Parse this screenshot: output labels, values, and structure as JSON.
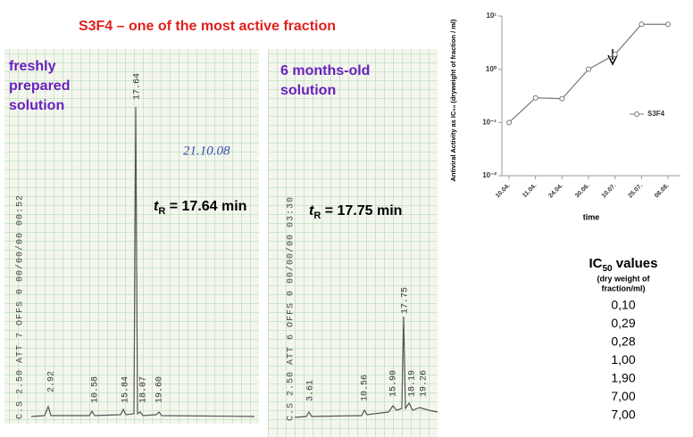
{
  "title": "S3F4 – one of the most active fraction",
  "chromatograms": [
    {
      "caption": [
        "freshly",
        "prepared",
        "solution"
      ],
      "retention": {
        "symbol": "t",
        "subscript": "R",
        "text": " = 17.64 min"
      },
      "note": "21.10.08",
      "strip": "C.S  2.50 ATT  7  OFFS  0  00/00/00  00:52",
      "peaks": [
        "2.92",
        "10.58",
        "15.84",
        "18.07",
        "19.60",
        "17.64"
      ]
    },
    {
      "caption": [
        "6 months-old",
        "solution"
      ],
      "retention": {
        "symbol": "t",
        "subscript": "R",
        "text": " = 17.75 min"
      },
      "strip": "C.S  2.50 ATT  6  OFFS  0  00/00/00  03:30",
      "peaks": [
        "3.61",
        "10.56",
        "15.90",
        "17.75",
        "18.19",
        "19.26"
      ]
    }
  ],
  "chart_data": {
    "type": "line",
    "ylabel": "Antiviral Activity as IC₅₀ (dryweight of fraction / ml)",
    "xlabel": "time",
    "categories": [
      "10.04.",
      "11.04.",
      "24.04.",
      "30.06.",
      "10.07.",
      "25.07.",
      "08.08."
    ],
    "series": [
      {
        "name": "S3F4",
        "color": "#777777",
        "values": [
          0.1,
          0.29,
          0.28,
          1.0,
          1.9,
          7.0,
          7.0
        ]
      }
    ],
    "log_y": true,
    "ylim": [
      0.01,
      10
    ],
    "yticks": [
      {
        "value": 0.01,
        "label": "10⁻²"
      },
      {
        "value": 0.1,
        "label": "10⁻¹"
      },
      {
        "value": 1,
        "label": "10⁰"
      },
      {
        "value": 10,
        "label": "10¹"
      }
    ],
    "legend": "right"
  },
  "ic50": {
    "heading": "IC",
    "heading_sub": "50",
    "heading_rest": " values",
    "unit": [
      "(dry weight of",
      "fraction/ml)"
    ],
    "values": [
      "0,10",
      "0,29",
      "0,28",
      "1,00",
      "1,90",
      "7,00",
      "7,00"
    ]
  }
}
